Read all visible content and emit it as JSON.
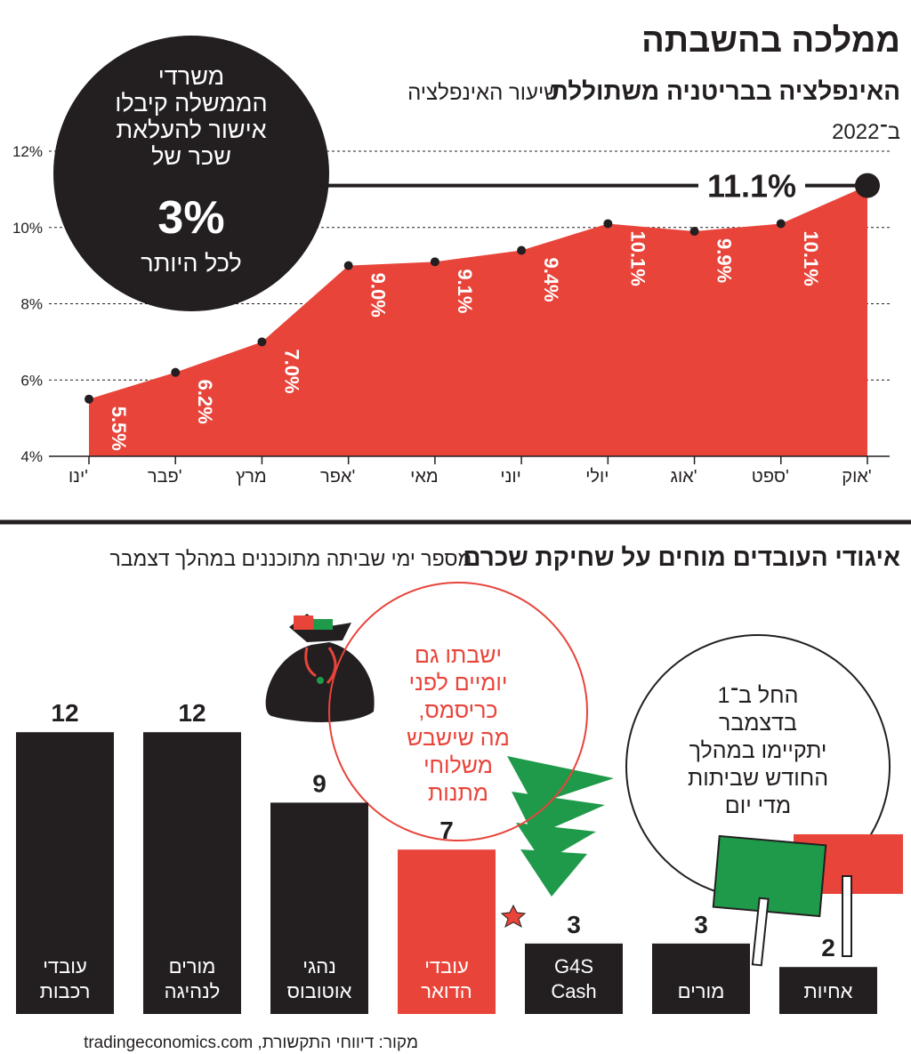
{
  "header": {
    "title": "ממלכה בהשבתה"
  },
  "chart_data": [
    {
      "type": "area",
      "title": "האינפלציה בבריטניה משתוללת",
      "subtitle_lines": [
        "שיעור האינפלציה",
        "ב־2022"
      ],
      "categories": [
        "ינו'",
        "פבר'",
        "מרץ",
        "אפר'",
        "מאי",
        "יוני",
        "יולי",
        "אוג'",
        "ספט'",
        "אוק'"
      ],
      "values": [
        5.5,
        6.2,
        7.0,
        9.0,
        9.1,
        9.4,
        10.1,
        9.9,
        10.1,
        11.1
      ],
      "value_labels": [
        "5.5%",
        "6.2%",
        "7.0%",
        "9.0%",
        "9.1%",
        "9.4%",
        "10.1%",
        "9.9%",
        "10.1%",
        "11.1%"
      ],
      "color": "#e8443a",
      "ylim": [
        4,
        12
      ],
      "yticks": [
        {
          "value": 4,
          "label": "4%"
        },
        {
          "value": 6,
          "label": "6%"
        },
        {
          "value": 8,
          "label": "8%"
        },
        {
          "value": 10,
          "label": "10%"
        },
        {
          "value": 12,
          "label": "12%"
        }
      ],
      "grid": true,
      "annotation": {
        "lines": [
          "משרדי",
          "הממשלה  קיבלו",
          "אישור להעלאת",
          "שכר של"
        ],
        "highlight": "3%",
        "footer": "לכל היותר"
      }
    },
    {
      "type": "bar",
      "title": "איגודי העובדים מוחים על שחיקת שכרם",
      "subtitle": "מספר ימי שביתה מתוכננים במהלך דצמבר",
      "categories": [
        "עובדי רכבות",
        "מורים לנהיגה",
        "נהגי אוטובוס",
        "עובדי הדואר",
        "G4S Cash",
        "מורים",
        "אחיות"
      ],
      "values": [
        12,
        12,
        9,
        7,
        3,
        3,
        2
      ],
      "colors": [
        "#231f20",
        "#231f20",
        "#231f20",
        "#e8443a",
        "#231f20",
        "#231f20",
        "#231f20"
      ],
      "annotations": [
        {
          "color": "#e8443a",
          "lines": [
            "ישבתו גם",
            "יומיים לפני",
            "כריסמס,",
            "מה שישבש",
            "משלוחי",
            "מתנות"
          ]
        },
        {
          "color": "#231f20",
          "lines": [
            "החל ב־1",
            "בדצמבר",
            "יתקיימו במהלך",
            "החודש שביתות",
            "מדי יום"
          ]
        }
      ]
    }
  ],
  "source": "מקור: דיווחי התקשורת, tradingeconomics.com"
}
